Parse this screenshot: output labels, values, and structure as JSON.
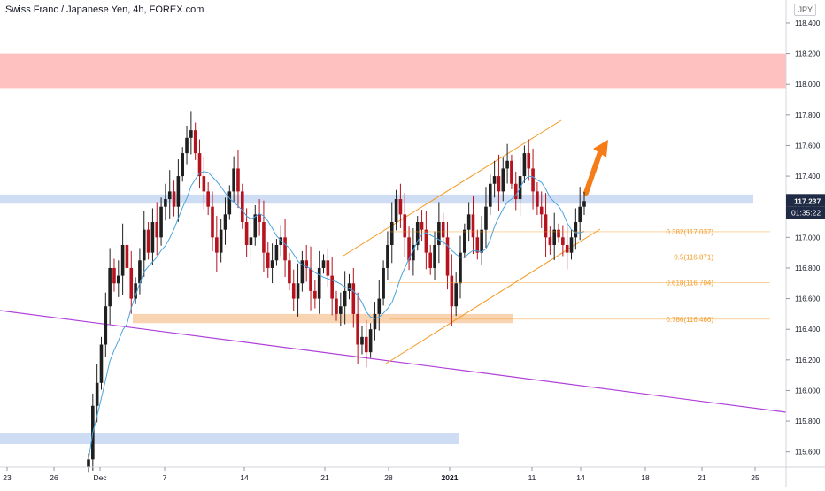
{
  "header": {
    "symbol_title": "Swiss Franc / Japanese Yen, 4h, FOREX.com",
    "currency": "JPY"
  },
  "price_labels": {
    "last_price": "117.237",
    "countdown": "01:35:22"
  },
  "colors": {
    "up_candle": "#1f1f1f",
    "down_candle": "#b5131d",
    "moving_average": "#4aa3df",
    "resistance_zone": "#ffb5b5",
    "support_zone": "#c5d7f2",
    "demand_zone": "#f7cda6",
    "channel": "#f59a23",
    "trendline": "#b041d9",
    "arrow": "#f57c16",
    "last_price_tag": "#1f2a44"
  },
  "chart_data": {
    "type": "candlestick",
    "title": "Swiss Franc / Japanese Yen, 4h, FOREX.com",
    "ylim": [
      115.5,
      118.55
    ],
    "y_ticks": [
      "118.400",
      "118.200",
      "118.000",
      "117.800",
      "117.600",
      "117.400",
      "117.200",
      "117.000",
      "116.800",
      "116.600",
      "116.400",
      "116.200",
      "116.000",
      "115.800",
      "115.600"
    ],
    "x_ticks": [
      "23",
      "26",
      "Dec",
      "7",
      "14",
      "21",
      "28",
      "2021",
      "11",
      "14",
      "18",
      "21",
      "25"
    ],
    "last_price": 117.237,
    "zones": [
      {
        "name": "resistance",
        "low": 117.97,
        "high": 118.2
      },
      {
        "name": "support",
        "low": 117.22,
        "high": 117.28
      },
      {
        "name": "demand",
        "low": 116.44,
        "high": 116.5
      },
      {
        "name": "lower-support",
        "low": 115.65,
        "high": 115.72
      }
    ],
    "fibonacci": [
      {
        "ratio": "0.382",
        "label": "0.382(117.037)",
        "price": 117.037
      },
      {
        "ratio": "0.5",
        "label": "0.5(116.871)",
        "price": 116.871
      },
      {
        "ratio": "0.618",
        "label": "0.618(116.704)",
        "price": 116.704
      },
      {
        "ratio": "0.786",
        "label": "0.786(116.466)",
        "price": 116.466
      }
    ],
    "closes": [
      115.55,
      115.9,
      116.05,
      116.3,
      116.55,
      116.8,
      116.7,
      116.75,
      116.95,
      116.8,
      116.6,
      116.7,
      116.85,
      117.05,
      116.9,
      117.1,
      117.0,
      117.2,
      117.25,
      117.3,
      117.2,
      117.4,
      117.55,
      117.65,
      117.7,
      117.55,
      117.4,
      117.3,
      117.2,
      117.0,
      116.9,
      117.05,
      117.15,
      117.3,
      117.45,
      117.3,
      117.1,
      116.95,
      117.0,
      117.15,
      117.1,
      116.9,
      116.8,
      116.85,
      116.95,
      117.0,
      116.85,
      116.7,
      116.6,
      116.7,
      116.85,
      116.8,
      116.65,
      116.6,
      116.8,
      116.85,
      116.75,
      116.6,
      116.5,
      116.55,
      116.65,
      116.7,
      116.5,
      116.3,
      116.35,
      116.25,
      116.4,
      116.5,
      116.6,
      116.8,
      116.95,
      117.1,
      117.25,
      117.15,
      117.0,
      116.85,
      116.95,
      117.1,
      117.05,
      116.9,
      116.8,
      116.95,
      117.1,
      117.0,
      116.75,
      116.55,
      116.7,
      116.9,
      117.05,
      117.15,
      117.0,
      116.9,
      117.05,
      117.2,
      117.35,
      117.4,
      117.3,
      117.45,
      117.5,
      117.35,
      117.25,
      117.4,
      117.55,
      117.45,
      117.3,
      117.2,
      117.15,
      117.0,
      116.95,
      117.05,
      117.0,
      116.95,
      116.9,
      117.0,
      117.1,
      117.2,
      117.237
    ]
  }
}
